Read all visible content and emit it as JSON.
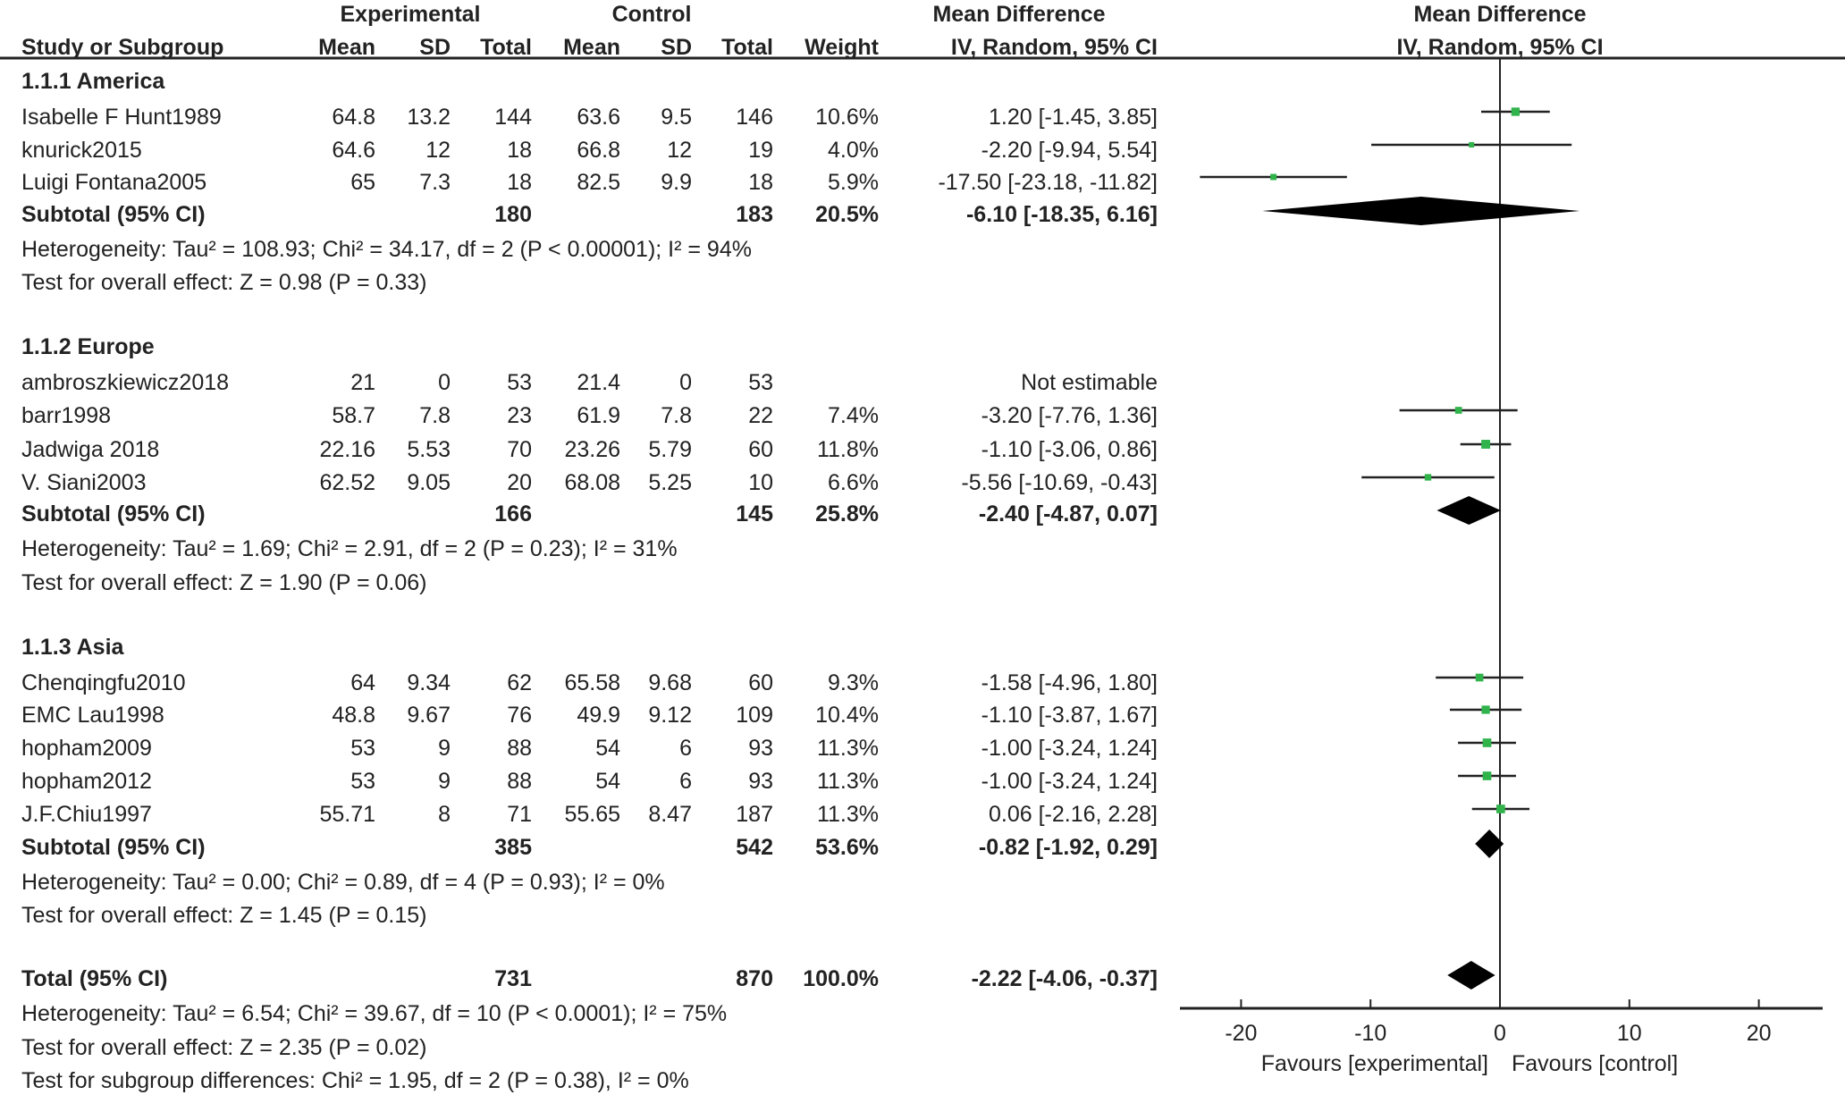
{
  "header": {
    "experimental": "Experimental",
    "control": "Control",
    "md_title": "Mean Difference",
    "md_method": "IV, Random, 95% CI",
    "plot_title": "Mean Difference",
    "plot_method": "IV, Random, 95% CI",
    "cols": [
      "Study or Subgroup",
      "Mean",
      "SD",
      "Total",
      "Mean",
      "SD",
      "Total",
      "Weight"
    ]
  },
  "chart_data": {
    "type": "forest",
    "xlim": [
      -25,
      25
    ],
    "xticks": [
      "-20",
      "-10",
      "0",
      "10",
      "20"
    ],
    "xtick_values": [
      -20,
      -10,
      0,
      10,
      20
    ],
    "xlabel_left": "Favours [experimental]",
    "xlabel_right": "Favours [control]",
    "groups": [
      {
        "title": "1.1.1 America",
        "studies": [
          {
            "name": "Isabelle F Hunt1989",
            "e_mean": "64.8",
            "e_sd": "13.2",
            "e_n": "144",
            "c_mean": "63.6",
            "c_sd": "9.5",
            "c_n": "146",
            "weight": "10.6%",
            "ci": "1.20 [-1.45, 3.85]",
            "md": 1.2,
            "lo": -1.45,
            "hi": 3.85,
            "w": 10.6
          },
          {
            "name": "knurick2015",
            "e_mean": "64.6",
            "e_sd": "12",
            "e_n": "18",
            "c_mean": "66.8",
            "c_sd": "12",
            "c_n": "19",
            "weight": "4.0%",
            "ci": "-2.20 [-9.94, 5.54]",
            "md": -2.2,
            "lo": -9.94,
            "hi": 5.54,
            "w": 4.0
          },
          {
            "name": "Luigi Fontana2005",
            "e_mean": "65",
            "e_sd": "7.3",
            "e_n": "18",
            "c_mean": "82.5",
            "c_sd": "9.9",
            "c_n": "18",
            "weight": "5.9%",
            "ci": "-17.50 [-23.18, -11.82]",
            "md": -17.5,
            "lo": -23.18,
            "hi": -11.82,
            "w": 5.9
          }
        ],
        "subtotal": {
          "label": "Subtotal (95% CI)",
          "e_n": "180",
          "c_n": "183",
          "weight": "20.5%",
          "ci": "-6.10 [-18.35, 6.16]",
          "md": -6.1,
          "lo": -18.35,
          "hi": 6.16
        },
        "heterogeneity": "Heterogeneity: Tau² = 108.93; Chi² = 34.17, df = 2 (P < 0.00001); I² = 94%",
        "overall": "Test for overall effect: Z = 0.98 (P = 0.33)"
      },
      {
        "title": "1.1.2 Europe",
        "studies": [
          {
            "name": "ambroszkiewicz2018",
            "e_mean": "21",
            "e_sd": "0",
            "e_n": "53",
            "c_mean": "21.4",
            "c_sd": "0",
            "c_n": "53",
            "weight": "",
            "ci": "Not estimable",
            "md": null,
            "lo": null,
            "hi": null,
            "w": 0
          },
          {
            "name": "barr1998",
            "e_mean": "58.7",
            "e_sd": "7.8",
            "e_n": "23",
            "c_mean": "61.9",
            "c_sd": "7.8",
            "c_n": "22",
            "weight": "7.4%",
            "ci": "-3.20 [-7.76, 1.36]",
            "md": -3.2,
            "lo": -7.76,
            "hi": 1.36,
            "w": 7.4
          },
          {
            "name": "Jadwiga 2018",
            "e_mean": "22.16",
            "e_sd": "5.53",
            "e_n": "70",
            "c_mean": "23.26",
            "c_sd": "5.79",
            "c_n": "60",
            "weight": "11.8%",
            "ci": "-1.10 [-3.06, 0.86]",
            "md": -1.1,
            "lo": -3.06,
            "hi": 0.86,
            "w": 11.8
          },
          {
            "name": "V. Siani2003",
            "e_mean": "62.52",
            "e_sd": "9.05",
            "e_n": "20",
            "c_mean": "68.08",
            "c_sd": "5.25",
            "c_n": "10",
            "weight": "6.6%",
            "ci": "-5.56 [-10.69, -0.43]",
            "md": -5.56,
            "lo": -10.69,
            "hi": -0.43,
            "w": 6.6
          }
        ],
        "subtotal": {
          "label": "Subtotal (95% CI)",
          "e_n": "166",
          "c_n": "145",
          "weight": "25.8%",
          "ci": "-2.40 [-4.87, 0.07]",
          "md": -2.4,
          "lo": -4.87,
          "hi": 0.07
        },
        "heterogeneity": "Heterogeneity: Tau² = 1.69; Chi² = 2.91, df = 2 (P = 0.23); I² = 31%",
        "overall": "Test for overall effect: Z = 1.90 (P = 0.06)"
      },
      {
        "title": "1.1.3 Asia",
        "studies": [
          {
            "name": "Chenqingfu2010",
            "e_mean": "64",
            "e_sd": "9.34",
            "e_n": "62",
            "c_mean": "65.58",
            "c_sd": "9.68",
            "c_n": "60",
            "weight": "9.3%",
            "ci": "-1.58 [-4.96, 1.80]",
            "md": -1.58,
            "lo": -4.96,
            "hi": 1.8,
            "w": 9.3
          },
          {
            "name": "EMC Lau1998",
            "e_mean": "48.8",
            "e_sd": "9.67",
            "e_n": "76",
            "c_mean": "49.9",
            "c_sd": "9.12",
            "c_n": "109",
            "weight": "10.4%",
            "ci": "-1.10 [-3.87, 1.67]",
            "md": -1.1,
            "lo": -3.87,
            "hi": 1.67,
            "w": 10.4
          },
          {
            "name": "hopham2009",
            "e_mean": "53",
            "e_sd": "9",
            "e_n": "88",
            "c_mean": "54",
            "c_sd": "6",
            "c_n": "93",
            "weight": "11.3%",
            "ci": "-1.00 [-3.24, 1.24]",
            "md": -1.0,
            "lo": -3.24,
            "hi": 1.24,
            "w": 11.3
          },
          {
            "name": "hopham2012",
            "e_mean": "53",
            "e_sd": "9",
            "e_n": "88",
            "c_mean": "54",
            "c_sd": "6",
            "c_n": "93",
            "weight": "11.3%",
            "ci": "-1.00 [-3.24, 1.24]",
            "md": -1.0,
            "lo": -3.24,
            "hi": 1.24,
            "w": 11.3
          },
          {
            "name": "J.F.Chiu1997",
            "e_mean": "55.71",
            "e_sd": "8",
            "e_n": "71",
            "c_mean": "55.65",
            "c_sd": "8.47",
            "c_n": "187",
            "weight": "11.3%",
            "ci": "0.06 [-2.16, 2.28]",
            "md": 0.06,
            "lo": -2.16,
            "hi": 2.28,
            "w": 11.3
          }
        ],
        "subtotal": {
          "label": "Subtotal (95% CI)",
          "e_n": "385",
          "c_n": "542",
          "weight": "53.6%",
          "ci": "-0.82 [-1.92, 0.29]",
          "md": -0.82,
          "lo": -1.92,
          "hi": 0.29
        },
        "heterogeneity": "Heterogeneity: Tau² = 0.00; Chi² = 0.89, df = 4 (P = 0.93); I² = 0%",
        "overall": "Test for overall effect: Z = 1.45 (P = 0.15)"
      }
    ],
    "total": {
      "label": "Total (95% CI)",
      "e_n": "731",
      "c_n": "870",
      "weight": "100.0%",
      "ci": "-2.22 [-4.06, -0.37]",
      "md": -2.22,
      "lo": -4.06,
      "hi": -0.37
    },
    "total_heterogeneity": "Heterogeneity: Tau² = 6.54; Chi² = 39.67, df = 10 (P < 0.0001); I² = 75%",
    "total_overall": "Test for overall effect: Z = 2.35 (P = 0.02)",
    "subgroup_differences": "Test for subgroup differences: Chi² = 1.95, df = 2 (P = 0.38), I² = 0%"
  },
  "colors": {
    "square": "#2fb34a",
    "line": "#222222"
  }
}
